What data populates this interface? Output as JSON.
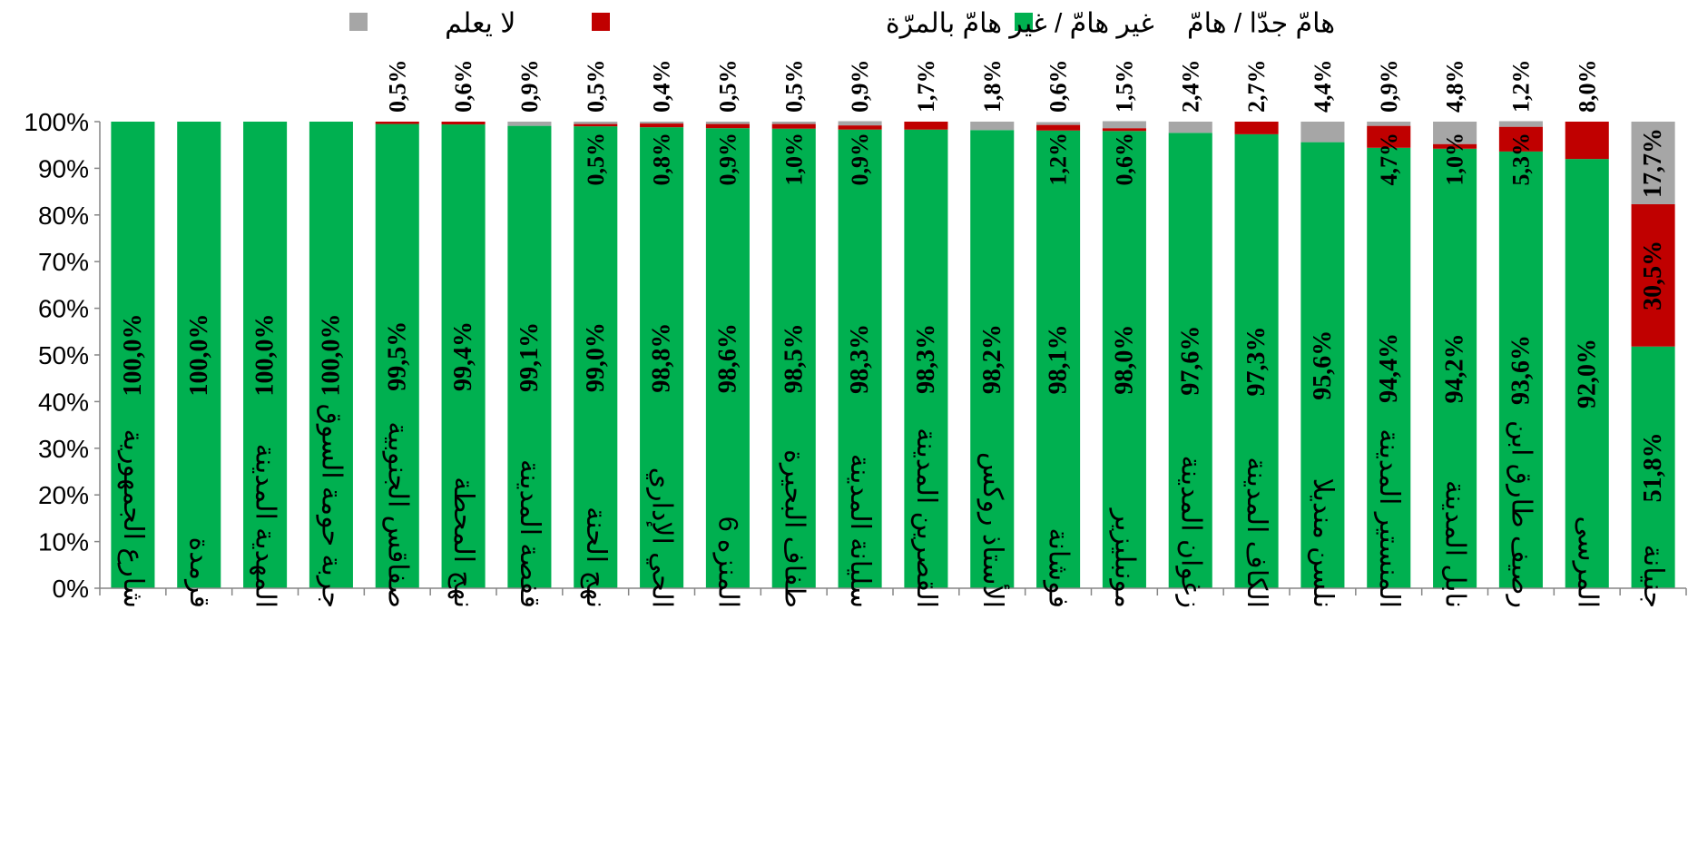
{
  "chart_data": {
    "type": "bar",
    "stacked": true,
    "orientation": "vertical",
    "ylim": [
      0,
      100
    ],
    "yticks": [
      "0%",
      "10%",
      "20%",
      "30%",
      "40%",
      "50%",
      "60%",
      "70%",
      "80%",
      "90%",
      "100%"
    ],
    "grid": false,
    "legend_position": "top",
    "categories": [
      "شارع الجمهورية",
      "قرمدة",
      "المهدية المدينة",
      "جربة حومة السوق",
      "صفاقس الجنوبية",
      "نهج المحطة",
      "قفصة المدينة",
      "نهج الحنة",
      "الحي الإداري",
      "المنزه 6",
      "طفاف البحيرة",
      "سليانة المدينة",
      "القصرين المدينة",
      "الأستاذ روكس",
      "فوشانة",
      "مونبليزير",
      "زغوان المدينة",
      "الكاف المدينة",
      "نلسن منديلا",
      "المنستير المدينة",
      "نابل المدينة",
      "رصيف طارق ابن",
      "المرسى",
      "جنيانة"
    ],
    "series": [
      {
        "name": "هامّ جدّا / هامّ",
        "color": "#00b050",
        "values": [
          100.0,
          100.0,
          100.0,
          100.0,
          99.5,
          99.4,
          99.1,
          99.0,
          98.8,
          98.6,
          98.5,
          98.3,
          98.3,
          98.2,
          98.1,
          98.0,
          97.6,
          97.3,
          95.6,
          94.4,
          94.2,
          93.6,
          92.0,
          51.8
        ],
        "labels": [
          "100,0%",
          "100,0%",
          "100,0%",
          "100,0%",
          "99,5%",
          "99,4%",
          "99,1%",
          "99,0%",
          "98,8%",
          "98,6%",
          "98,5%",
          "98,3%",
          "98,3%",
          "98,2%",
          "98,1%",
          "98,0%",
          "97,6%",
          "97,3%",
          "95,6%",
          "94,4%",
          "94,2%",
          "93,6%",
          "92,0%",
          "51,8%"
        ]
      },
      {
        "name": "غير هامّ / غير هامّ بالمرّة",
        "color": "#c00000",
        "values": [
          0,
          0,
          0,
          0,
          0.5,
          0.6,
          0,
          0.5,
          0.8,
          0.9,
          1.0,
          0.9,
          1.7,
          0,
          1.2,
          0.6,
          0,
          2.7,
          0,
          4.7,
          1.0,
          5.3,
          8.0,
          30.5
        ],
        "labels": [
          "",
          "",
          "",
          "",
          "0,5%",
          "0,6%",
          "",
          "0,5%",
          "0,8%",
          "0,9%",
          "1,0%",
          "0,9%",
          "1,7%",
          "",
          "1,2%",
          "0,6%",
          "",
          "2,7%",
          "",
          "4,7%",
          "1,0%",
          "5,3%",
          "8,0%",
          "30,5%"
        ]
      },
      {
        "name": "لا يعلم",
        "color": "#a6a6a6",
        "values": [
          0,
          0,
          0,
          0,
          0,
          0,
          0.9,
          0.5,
          0.4,
          0.5,
          0.5,
          0.9,
          0,
          1.8,
          0.6,
          1.5,
          2.4,
          0,
          4.4,
          0.9,
          4.8,
          1.2,
          0,
          17.7
        ],
        "labels": [
          "",
          "",
          "",
          "",
          "",
          "",
          "0,9%",
          "0,5%",
          "0,4%",
          "0,5%",
          "0,5%",
          "0,9%",
          "",
          "1,8%",
          "0,6%",
          "1,5%",
          "2,4%",
          "",
          "4,4%",
          "0,9%",
          "4,8%",
          "1,2%",
          "",
          "17,7%"
        ]
      }
    ]
  }
}
